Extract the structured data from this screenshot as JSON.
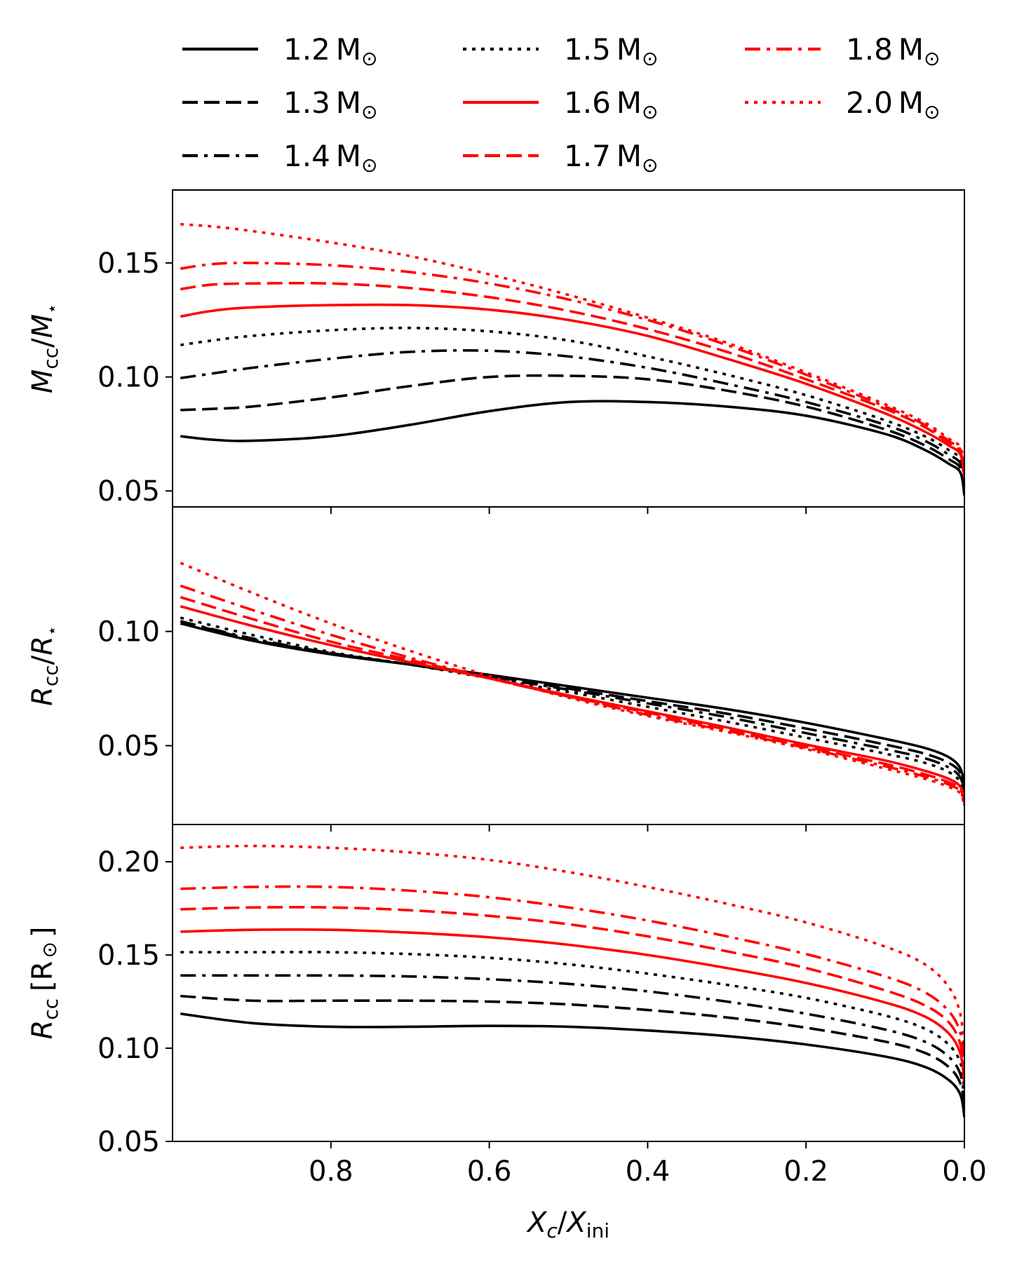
{
  "chart_data": {
    "type": "line",
    "xlabel": {
      "main": "X",
      "main_sub": "c",
      "sep": "/",
      "den": "X",
      "den_sub": "ini"
    },
    "xlim": [
      1.0,
      0.0
    ],
    "xticks": [
      {
        "v": 0.8,
        "label": "0.8"
      },
      {
        "v": 0.6,
        "label": "0.6"
      },
      {
        "v": 0.4,
        "label": "0.4"
      },
      {
        "v": 0.2,
        "label": "0.2"
      },
      {
        "v": 0.0,
        "label": "0.0"
      }
    ],
    "grid": false,
    "legend": {
      "placement": "top",
      "columns": 3,
      "unit": "M",
      "unit_sub": "⊙"
    },
    "colors": {
      "black": "#000000",
      "red": "#ff0000"
    },
    "series": [
      {
        "mass": "1.2",
        "color": "black",
        "style": "solid"
      },
      {
        "mass": "1.3",
        "color": "black",
        "style": "dashed"
      },
      {
        "mass": "1.4",
        "color": "black",
        "style": "dashdot"
      },
      {
        "mass": "1.5",
        "color": "black",
        "style": "dotted"
      },
      {
        "mass": "1.6",
        "color": "red",
        "style": "solid"
      },
      {
        "mass": "1.7",
        "color": "red",
        "style": "dashed"
      },
      {
        "mass": "1.8",
        "color": "red",
        "style": "dashdot"
      },
      {
        "mass": "2.0",
        "color": "red",
        "style": "dotted"
      }
    ],
    "panels": [
      {
        "id": "mass",
        "ylabel": {
          "main": "M",
          "main_sub": "cc",
          "sep": "/",
          "den": "M",
          "den_sub": "⋆"
        },
        "ylim": [
          0.043,
          0.182
        ],
        "yticks": [
          {
            "v": 0.05,
            "label": "0.05"
          },
          {
            "v": 0.1,
            "label": "0.10"
          },
          {
            "v": 0.15,
            "label": "0.15"
          }
        ],
        "x": [
          0.99,
          0.95,
          0.9,
          0.8,
          0.7,
          0.6,
          0.5,
          0.4,
          0.3,
          0.2,
          0.1,
          0.05,
          0.02,
          0.005,
          0.0
        ],
        "series_values": [
          [
            0.074,
            0.0725,
            0.072,
            0.074,
            0.079,
            0.085,
            0.089,
            0.089,
            0.087,
            0.083,
            0.075,
            0.068,
            0.062,
            0.058,
            0.048
          ],
          [
            0.0855,
            0.086,
            0.087,
            0.091,
            0.096,
            0.1,
            0.1005,
            0.099,
            0.094,
            0.087,
            0.077,
            0.07,
            0.064,
            0.06,
            0.051
          ],
          [
            0.0995,
            0.1015,
            0.104,
            0.108,
            0.111,
            0.1115,
            0.109,
            0.104,
            0.097,
            0.089,
            0.079,
            0.072,
            0.066,
            0.062,
            0.053
          ],
          [
            0.114,
            0.116,
            0.118,
            0.1205,
            0.1215,
            0.12,
            0.116,
            0.109,
            0.101,
            0.092,
            0.081,
            0.074,
            0.068,
            0.064,
            0.055
          ],
          [
            0.1265,
            0.129,
            0.1305,
            0.1315,
            0.1315,
            0.1295,
            0.125,
            0.118,
            0.108,
            0.097,
            0.084,
            0.076,
            0.07,
            0.066,
            0.056
          ],
          [
            0.1385,
            0.1405,
            0.141,
            0.141,
            0.139,
            0.135,
            0.129,
            0.121,
            0.111,
            0.099,
            0.086,
            0.078,
            0.071,
            0.067,
            0.057
          ],
          [
            0.1475,
            0.1495,
            0.15,
            0.149,
            0.146,
            0.141,
            0.134,
            0.125,
            0.114,
            0.101,
            0.087,
            0.079,
            0.072,
            0.068,
            0.058
          ],
          [
            0.167,
            0.166,
            0.164,
            0.159,
            0.153,
            0.145,
            0.136,
            0.126,
            0.115,
            0.102,
            0.088,
            0.08,
            0.073,
            0.069,
            0.059
          ]
        ]
      },
      {
        "id": "radius-frac",
        "ylabel": {
          "main": "R",
          "main_sub": "cc",
          "sep": "/",
          "den": "R",
          "den_sub": "⋆"
        },
        "ylim": [
          0.0155,
          0.1545
        ],
        "yticks": [
          {
            "v": 0.05,
            "label": "0.05"
          },
          {
            "v": 0.1,
            "label": "0.10"
          }
        ],
        "x": [
          0.99,
          0.9,
          0.8,
          0.7,
          0.6,
          0.5,
          0.4,
          0.3,
          0.2,
          0.1,
          0.05,
          0.02,
          0.005,
          0.0
        ],
        "series_values": [
          [
            0.1035,
            0.096,
            0.09,
            0.0855,
            0.081,
            0.076,
            0.071,
            0.066,
            0.06,
            0.053,
            0.049,
            0.045,
            0.04,
            0.032
          ],
          [
            0.1045,
            0.0965,
            0.0905,
            0.0855,
            0.0805,
            0.075,
            0.0695,
            0.064,
            0.0575,
            0.0505,
            0.0465,
            0.0425,
            0.038,
            0.03
          ],
          [
            0.1045,
            0.097,
            0.0905,
            0.0855,
            0.08,
            0.0745,
            0.0685,
            0.0625,
            0.0555,
            0.0485,
            0.0445,
            0.0405,
            0.036,
            0.029
          ],
          [
            0.106,
            0.0985,
            0.091,
            0.0855,
            0.0795,
            0.0735,
            0.067,
            0.0605,
            0.0535,
            0.0465,
            0.0425,
            0.0385,
            0.034,
            0.027
          ],
          [
            0.111,
            0.1025,
            0.094,
            0.0865,
            0.0795,
            0.072,
            0.065,
            0.058,
            0.0505,
            0.0435,
            0.039,
            0.0355,
            0.032,
            0.026
          ],
          [
            0.115,
            0.1055,
            0.0955,
            0.0875,
            0.0795,
            0.0715,
            0.0645,
            0.057,
            0.0495,
            0.042,
            0.0375,
            0.034,
            0.031,
            0.025
          ],
          [
            0.12,
            0.1095,
            0.0985,
            0.0885,
            0.0795,
            0.0715,
            0.0635,
            0.0565,
            0.049,
            0.041,
            0.0365,
            0.033,
            0.03,
            0.024
          ],
          [
            0.13,
            0.117,
            0.1035,
            0.0915,
            0.0805,
            0.071,
            0.063,
            0.056,
            0.0485,
            0.04,
            0.0355,
            0.032,
            0.029,
            0.023
          ]
        ]
      },
      {
        "id": "radius-abs",
        "ylabel": {
          "main": "R",
          "main_sub": "cc",
          "unit_open": "[R",
          "unit_sub": "⊙",
          "unit_close": "]"
        },
        "ylim": [
          0.05,
          0.22
        ],
        "yticks": [
          {
            "v": 0.05,
            "label": "0.05"
          },
          {
            "v": 0.1,
            "label": "0.10"
          },
          {
            "v": 0.15,
            "label": "0.15"
          },
          {
            "v": 0.2,
            "label": "0.20"
          }
        ],
        "x": [
          0.99,
          0.9,
          0.8,
          0.7,
          0.6,
          0.5,
          0.4,
          0.3,
          0.2,
          0.1,
          0.05,
          0.02,
          0.005,
          0.0
        ],
        "series_values": [
          [
            0.1185,
            0.1135,
            0.1115,
            0.1115,
            0.112,
            0.1115,
            0.1095,
            0.1065,
            0.102,
            0.0955,
            0.09,
            0.083,
            0.075,
            0.063
          ],
          [
            0.128,
            0.1255,
            0.1255,
            0.1255,
            0.125,
            0.1235,
            0.1205,
            0.1165,
            0.111,
            0.1035,
            0.0975,
            0.09,
            0.081,
            0.068
          ],
          [
            0.139,
            0.139,
            0.139,
            0.1385,
            0.137,
            0.1345,
            0.1305,
            0.125,
            0.1185,
            0.11,
            0.1035,
            0.0955,
            0.086,
            0.072
          ],
          [
            0.1515,
            0.1515,
            0.1515,
            0.1505,
            0.1485,
            0.145,
            0.14,
            0.134,
            0.127,
            0.1175,
            0.1105,
            0.102,
            0.092,
            0.077
          ],
          [
            0.1625,
            0.1635,
            0.1635,
            0.162,
            0.1595,
            0.1555,
            0.15,
            0.143,
            0.135,
            0.1245,
            0.117,
            0.108,
            0.097,
            0.081
          ],
          [
            0.1745,
            0.1755,
            0.1755,
            0.174,
            0.171,
            0.1665,
            0.16,
            0.152,
            0.143,
            0.131,
            0.123,
            0.114,
            0.102,
            0.085
          ],
          [
            0.1855,
            0.1865,
            0.1865,
            0.1845,
            0.181,
            0.1755,
            0.1685,
            0.16,
            0.1505,
            0.1385,
            0.13,
            0.12,
            0.108,
            0.09
          ],
          [
            0.2075,
            0.2085,
            0.2075,
            0.205,
            0.201,
            0.1945,
            0.1865,
            0.1775,
            0.1675,
            0.1545,
            0.145,
            0.133,
            0.118,
            0.096
          ]
        ]
      }
    ]
  }
}
